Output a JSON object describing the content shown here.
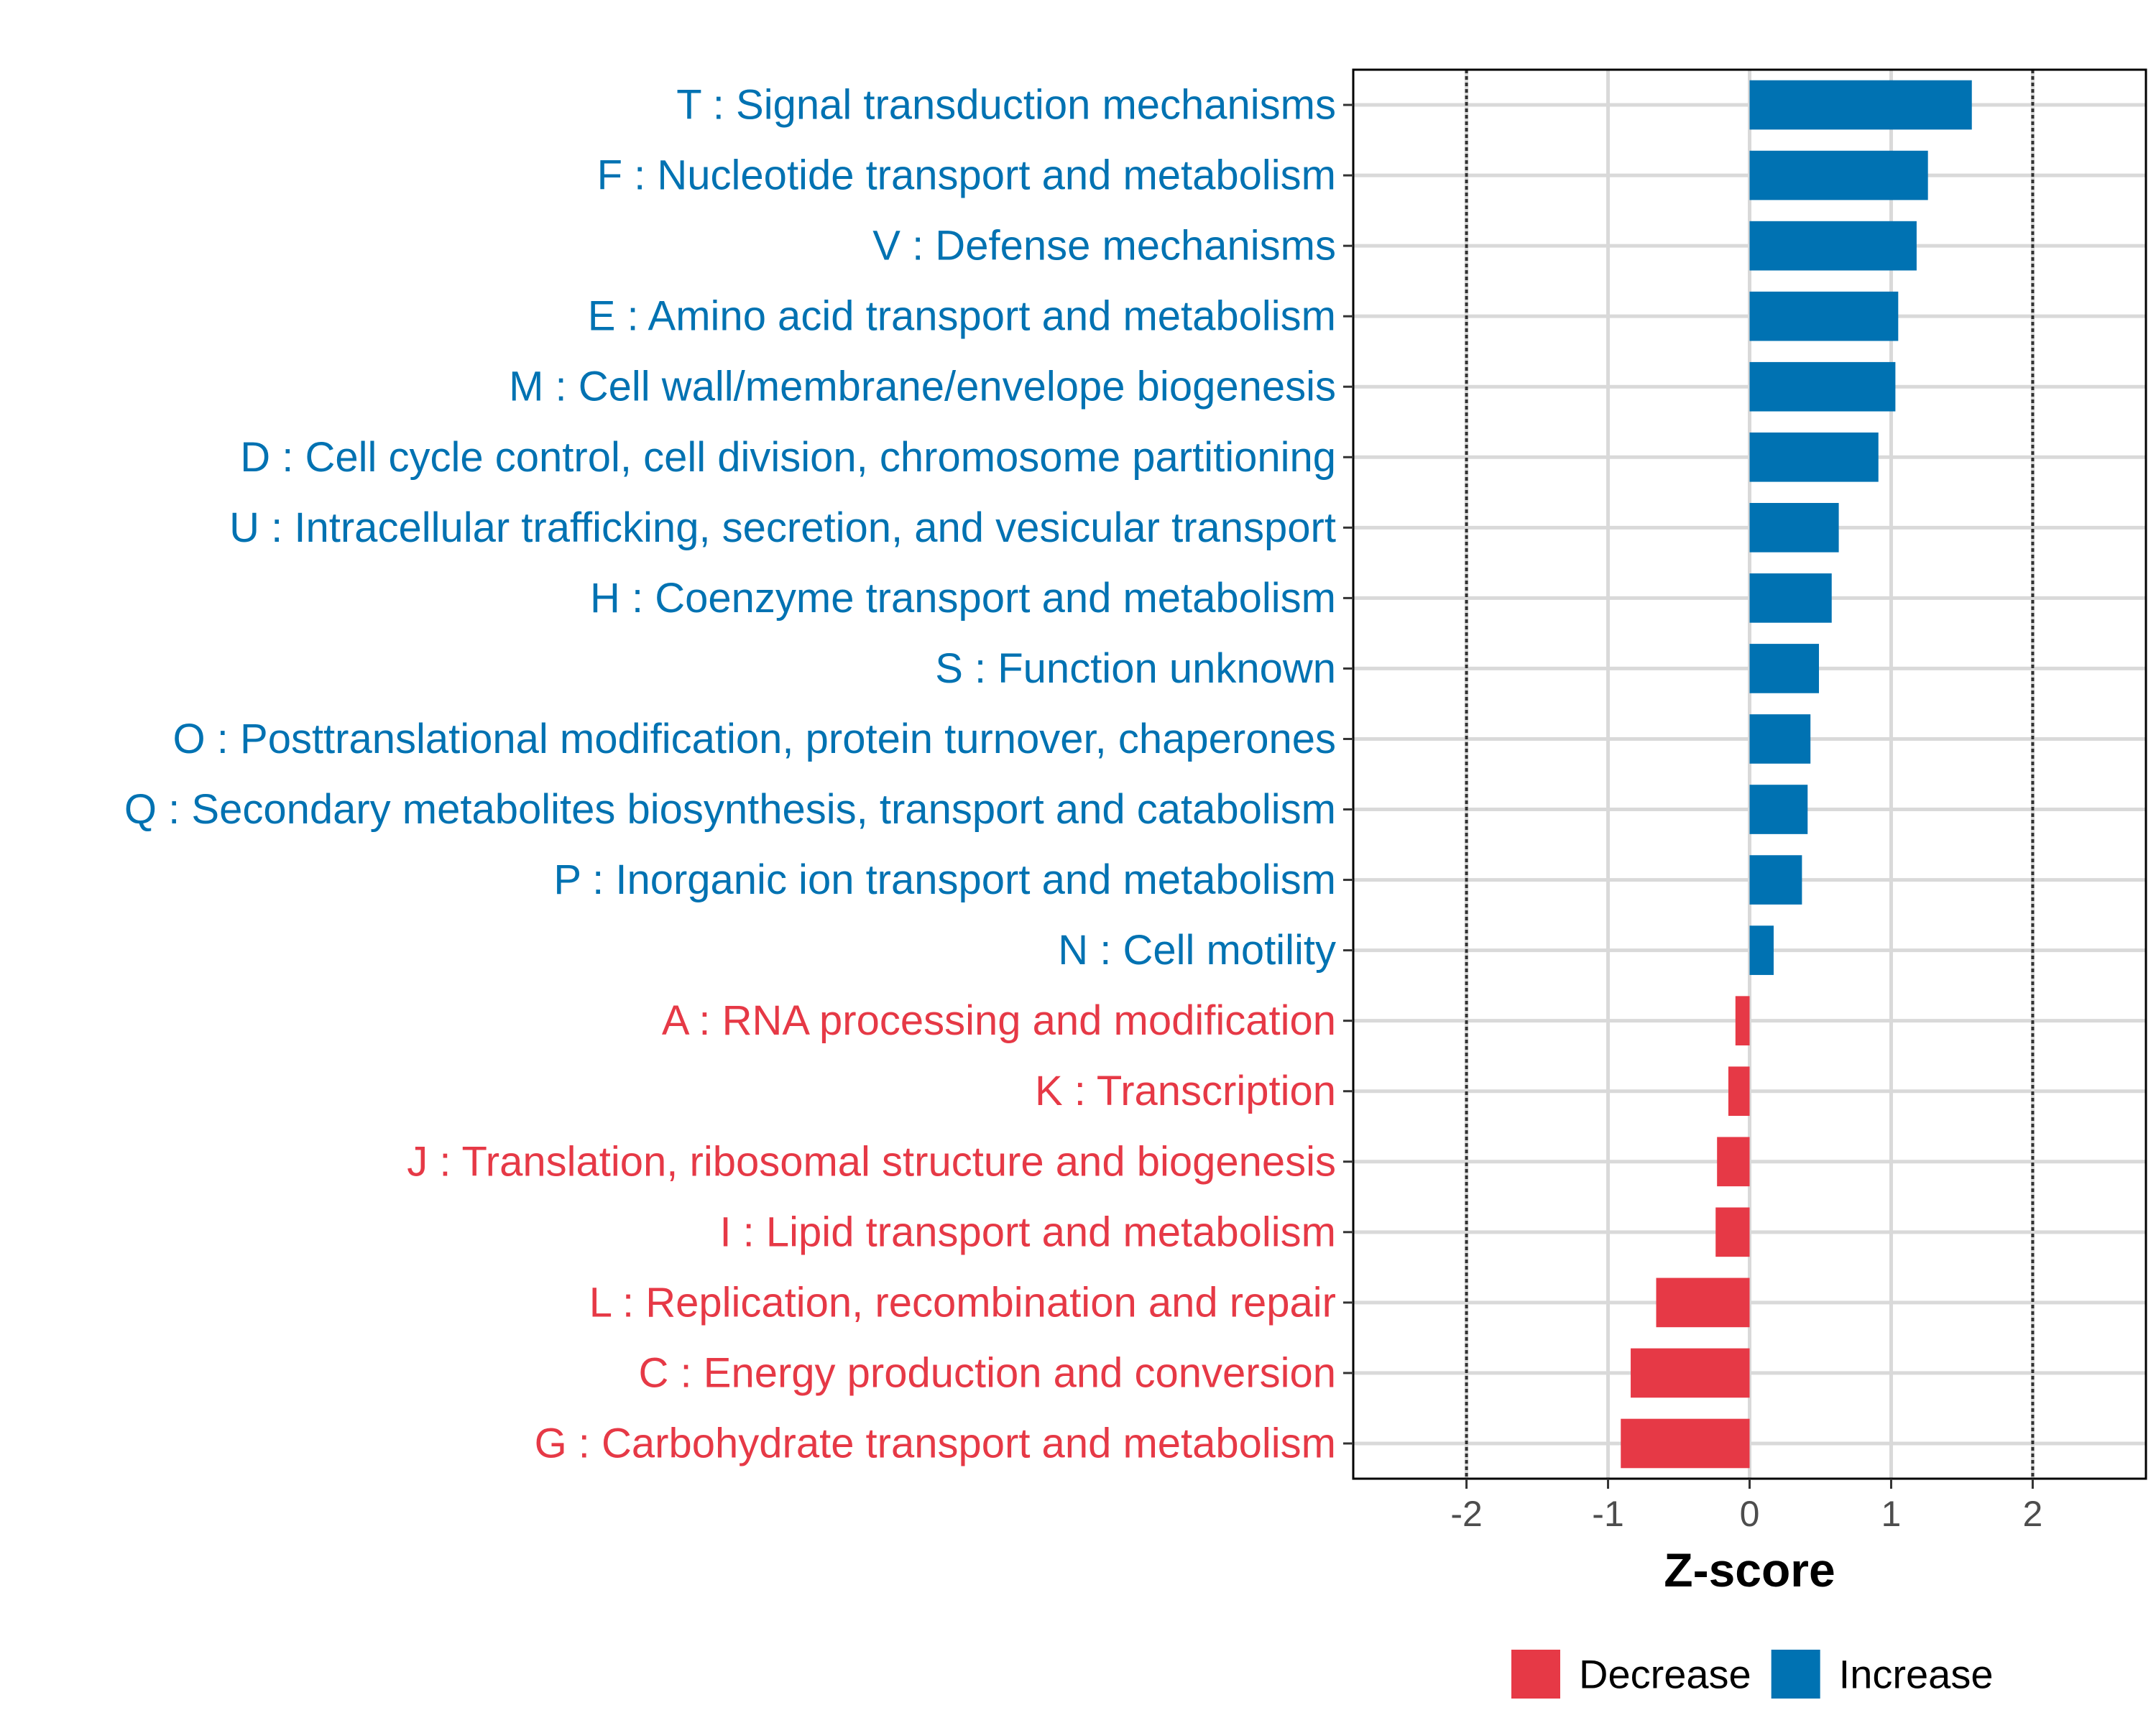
{
  "chart_data": {
    "type": "bar",
    "orientation": "horizontal",
    "xlabel": "Z-score",
    "ylabel": "",
    "xlim": [
      -2.8,
      2.8
    ],
    "xticks": [
      -2,
      -1,
      0,
      1,
      2
    ],
    "xtick_labels": [
      "-2",
      "-1",
      "0",
      "1",
      "2"
    ],
    "reference_lines": [
      -2,
      2
    ],
    "grid": true,
    "legend_position": "bottom",
    "colors": {
      "Increase": "#0072b2",
      "Decrease": "#e63946"
    },
    "categories": [
      "T : Signal transduction mechanisms",
      "F : Nucleotide transport and metabolism",
      "V : Defense mechanisms",
      "E : Amino acid transport and metabolism",
      "M : Cell wall/membrane/envelope biogenesis",
      "D : Cell cycle control, cell division, chromosome partitioning",
      "U : Intracellular trafficking, secretion, and vesicular transport",
      "H : Coenzyme transport and metabolism",
      "S : Function unknown",
      "O : Posttranslational modification, protein turnover, chaperones",
      "Q : Secondary metabolites biosynthesis, transport and catabolism",
      "P : Inorganic ion transport and metabolism",
      "N : Cell motility",
      "A : RNA processing and modification",
      "K : Transcription",
      "J : Translation, ribosomal structure and biogenesis",
      "I : Lipid transport and metabolism",
      "L : Replication, recombination and repair",
      "C : Energy production and conversion",
      "G : Carbohydrate transport and metabolism"
    ],
    "values": [
      1.57,
      1.26,
      1.18,
      1.05,
      1.03,
      0.91,
      0.63,
      0.58,
      0.49,
      0.43,
      0.41,
      0.37,
      0.17,
      -0.1,
      -0.15,
      -0.23,
      -0.24,
      -0.66,
      -0.84,
      -0.91
    ],
    "groups": [
      "Increase",
      "Increase",
      "Increase",
      "Increase",
      "Increase",
      "Increase",
      "Increase",
      "Increase",
      "Increase",
      "Increase",
      "Increase",
      "Increase",
      "Increase",
      "Decrease",
      "Decrease",
      "Decrease",
      "Decrease",
      "Decrease",
      "Decrease",
      "Decrease"
    ],
    "legend": [
      {
        "name": "Decrease"
      },
      {
        "name": "Increase"
      }
    ]
  }
}
